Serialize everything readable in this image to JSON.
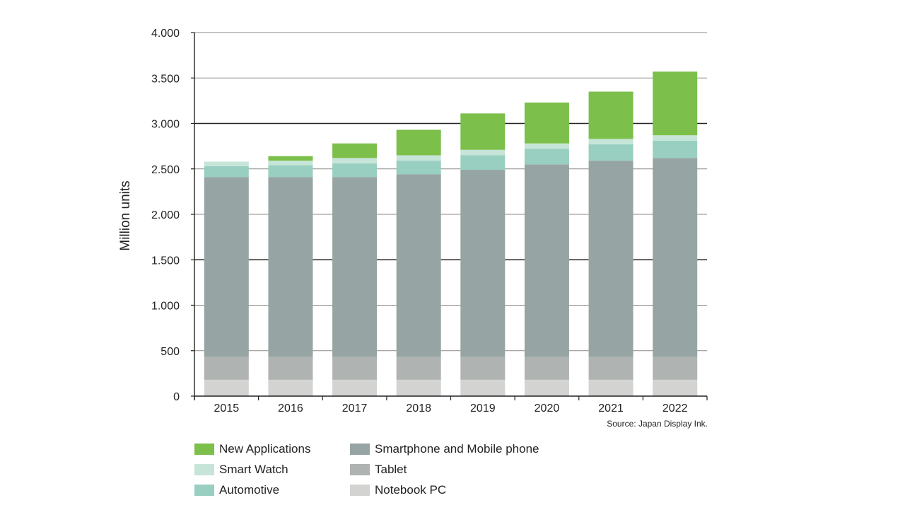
{
  "chart_data": {
    "type": "bar",
    "stacked": true,
    "title": "",
    "xlabel": "",
    "ylabel": "Million units",
    "ylim": [
      0,
      4000
    ],
    "yticks": [
      0,
      500,
      1000,
      1500,
      2000,
      2500,
      3000,
      3500,
      4000
    ],
    "ytick_labels": [
      "0",
      "500",
      "1.000",
      "1.500",
      "2.000",
      "2.500",
      "3.000",
      "3.500",
      "4.000"
    ],
    "grid": true,
    "legend_position": "bottom",
    "categories": [
      "2015",
      "2016",
      "2017",
      "2018",
      "2019",
      "2020",
      "2021",
      "2022"
    ],
    "series": [
      {
        "name": "Notebook PC",
        "color": "#d3d3d1",
        "values": [
          180,
          180,
          180,
          180,
          180,
          180,
          180,
          180
        ]
      },
      {
        "name": "Tablet",
        "color": "#afb3b1",
        "values": [
          250,
          250,
          250,
          250,
          250,
          250,
          250,
          250
        ]
      },
      {
        "name": "Smartphone and Mobile phone",
        "color": "#96a5a3",
        "values": [
          1980,
          1980,
          1980,
          2010,
          2060,
          2120,
          2160,
          2190
        ]
      },
      {
        "name": "Automotive",
        "color": "#99cfc0",
        "values": [
          120,
          130,
          150,
          150,
          160,
          170,
          180,
          190
        ]
      },
      {
        "name": "Smart Watch",
        "color": "#c6e5d8",
        "values": [
          50,
          50,
          60,
          60,
          60,
          60,
          60,
          60
        ]
      },
      {
        "name": "New Applications",
        "color": "#7cbf4a",
        "values": [
          0,
          50,
          160,
          280,
          400,
          450,
          520,
          700
        ]
      }
    ],
    "source": "Source: Japan Display Ink."
  },
  "legend": {
    "items": [
      {
        "label": "New Applications",
        "color": "#7cbf4a"
      },
      {
        "label": "Smartphone and Mobile phone",
        "color": "#96a5a3"
      },
      {
        "label": "Smart Watch",
        "color": "#c6e5d8"
      },
      {
        "label": "Tablet",
        "color": "#afb3b1"
      },
      {
        "label": "Automotive",
        "color": "#99cfc0"
      },
      {
        "label": "Notebook PC",
        "color": "#d3d3d1"
      }
    ]
  },
  "colors": {
    "gridline": "#8a8a8a",
    "axis": "#222222"
  }
}
